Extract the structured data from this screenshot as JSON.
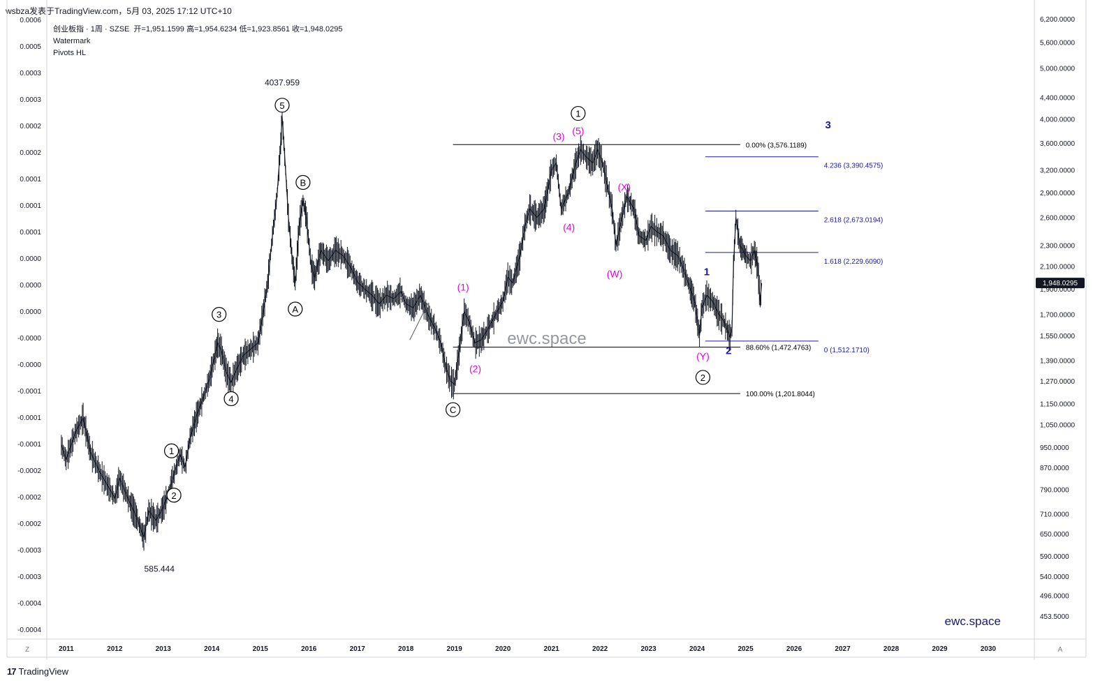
{
  "header": {
    "title": "wsbza发表于TradingView.com，5月 03, 2025 17:12 UTC+10"
  },
  "legend": {
    "symbol": "创业板指 · 1周 · SZSE",
    "ohlc": "开=1,951.1599  高=1,954.6234  低=1,923.8561  收=1,948.0295",
    "indicators": [
      "Watermark",
      "Pivots HL"
    ]
  },
  "footer": {
    "brand": "TradingView",
    "left_button": "Z",
    "right_button": "A"
  },
  "colors": {
    "price": "#131722",
    "wave_black": "#000000",
    "wave_magenta": "#e600e6",
    "wave_blue": "#1a1aa8",
    "fib_blue": "#1a1aa8",
    "last_price_bg": "#131722",
    "watermark": "#9598a1"
  },
  "chart_data": {
    "type": "line",
    "title": "创业板指 · 1周 · SZSE",
    "log_scale": true,
    "xlim": [
      2010.6,
      2030.95
    ],
    "ylim": [
      410,
      6300
    ],
    "x_ticks": [
      "2011",
      "2012",
      "2013",
      "2014",
      "2015",
      "2016",
      "2017",
      "2018",
      "2019",
      "2020",
      "2021",
      "2022",
      "2023",
      "2024",
      "2025",
      "2026",
      "2027",
      "2028",
      "2029",
      "2030"
    ],
    "y_ticks_right": [
      "6,200.0000",
      "5,600.0000",
      "5,000.0000",
      "4,400.0000",
      "4,000.0000",
      "3,600.0000",
      "3,200.0000",
      "2,900.0000",
      "2,600.0000",
      "2,300.0000",
      "2,100.0000",
      "1,900.0000",
      "1,700.0000",
      "1,550.0000",
      "1,390.0000",
      "1,270.0000",
      "1,150.0000",
      "1,050.0000",
      "950.0000",
      "870.0000",
      "790.0000",
      "710.0000",
      "650.0000",
      "590.0000",
      "540.0000",
      "496.0000",
      "453.5000"
    ],
    "y_ticks_left": [
      "0.0006",
      "0.0005",
      "0.0003",
      "0.0003",
      "0.0002",
      "0.0002",
      "0.0001",
      "0.0001",
      "0.0001",
      "0.0000",
      "0.0000",
      "0.0000",
      "-0.0000",
      "-0.0000",
      "-0.0001",
      "-0.0001",
      "-0.0001",
      "-0.0002",
      "-0.0002",
      "-0.0002",
      "-0.0003",
      "-0.0003",
      "-0.0004",
      "-0.0004"
    ],
    "last_price": "1,948.0295",
    "series": [
      {
        "values": [
          [
            2010.9,
            960
          ],
          [
            2011.0,
            900
          ],
          [
            2011.2,
            1020
          ],
          [
            2011.35,
            1080
          ],
          [
            2011.5,
            930
          ],
          [
            2011.7,
            850
          ],
          [
            2011.9,
            790
          ],
          [
            2012.0,
            760
          ],
          [
            2012.1,
            830
          ],
          [
            2012.3,
            750
          ],
          [
            2012.45,
            700
          ],
          [
            2012.6,
            640
          ],
          [
            2012.7,
            720
          ],
          [
            2012.85,
            690
          ],
          [
            2013.0,
            730
          ],
          [
            2013.15,
            800
          ],
          [
            2013.25,
            860
          ],
          [
            2013.35,
            920
          ],
          [
            2013.45,
            870
          ],
          [
            2013.55,
            990
          ],
          [
            2013.7,
            1100
          ],
          [
            2013.85,
            1200
          ],
          [
            2013.95,
            1280
          ],
          [
            2014.05,
            1400
          ],
          [
            2014.12,
            1500
          ],
          [
            2014.2,
            1450
          ],
          [
            2014.3,
            1320
          ],
          [
            2014.4,
            1260
          ],
          [
            2014.5,
            1330
          ],
          [
            2014.65,
            1420
          ],
          [
            2014.8,
            1460
          ],
          [
            2014.95,
            1500
          ],
          [
            2015.05,
            1700
          ],
          [
            2015.15,
            1950
          ],
          [
            2015.25,
            2400
          ],
          [
            2015.35,
            2900
          ],
          [
            2015.42,
            3600
          ],
          [
            2015.45,
            4037.959
          ],
          [
            2015.52,
            3200
          ],
          [
            2015.58,
            2600
          ],
          [
            2015.65,
            2200
          ],
          [
            2015.72,
            1950
          ],
          [
            2015.8,
            2500
          ],
          [
            2015.88,
            2800
          ],
          [
            2015.95,
            2600
          ],
          [
            2016.05,
            2100
          ],
          [
            2016.12,
            2000
          ],
          [
            2016.25,
            2250
          ],
          [
            2016.4,
            2150
          ],
          [
            2016.55,
            2250
          ],
          [
            2016.7,
            2200
          ],
          [
            2016.85,
            2100
          ],
          [
            2017.0,
            1960
          ],
          [
            2017.15,
            1900
          ],
          [
            2017.3,
            1850
          ],
          [
            2017.45,
            1780
          ],
          [
            2017.6,
            1850
          ],
          [
            2017.75,
            1820
          ],
          [
            2017.9,
            1880
          ],
          [
            2018.0,
            1780
          ],
          [
            2018.15,
            1750
          ],
          [
            2018.3,
            1850
          ],
          [
            2018.45,
            1700
          ],
          [
            2018.6,
            1600
          ],
          [
            2018.72,
            1500
          ],
          [
            2018.82,
            1350
          ],
          [
            2018.92,
            1270
          ],
          [
            2019.0,
            1250
          ],
          [
            2019.1,
            1450
          ],
          [
            2019.2,
            1720
          ],
          [
            2019.3,
            1650
          ],
          [
            2019.42,
            1500
          ],
          [
            2019.55,
            1520
          ],
          [
            2019.7,
            1600
          ],
          [
            2019.85,
            1700
          ],
          [
            2020.0,
            1800
          ],
          [
            2020.1,
            2000
          ],
          [
            2020.2,
            1950
          ],
          [
            2020.35,
            2200
          ],
          [
            2020.45,
            2500
          ],
          [
            2020.55,
            2700
          ],
          [
            2020.7,
            2600
          ],
          [
            2020.85,
            2700
          ],
          [
            2021.0,
            3200
          ],
          [
            2021.1,
            3300
          ],
          [
            2021.2,
            2700
          ],
          [
            2021.35,
            2900
          ],
          [
            2021.5,
            3300
          ],
          [
            2021.6,
            3500
          ],
          [
            2021.7,
            3400
          ],
          [
            2021.85,
            3300
          ],
          [
            2021.95,
            3500
          ],
          [
            2022.05,
            3300
          ],
          [
            2022.15,
            3000
          ],
          [
            2022.25,
            2700
          ],
          [
            2022.33,
            2300
          ],
          [
            2022.45,
            2600
          ],
          [
            2022.55,
            2850
          ],
          [
            2022.7,
            2700
          ],
          [
            2022.8,
            2400
          ],
          [
            2022.95,
            2350
          ],
          [
            2023.05,
            2500
          ],
          [
            2023.15,
            2450
          ],
          [
            2023.3,
            2400
          ],
          [
            2023.45,
            2250
          ],
          [
            2023.6,
            2200
          ],
          [
            2023.7,
            2100
          ],
          [
            2023.82,
            1950
          ],
          [
            2023.95,
            1800
          ],
          [
            2024.05,
            1550
          ],
          [
            2024.1,
            1750
          ],
          [
            2024.2,
            1850
          ],
          [
            2024.32,
            1800
          ],
          [
            2024.45,
            1700
          ],
          [
            2024.55,
            1650
          ],
          [
            2024.68,
            1540
          ],
          [
            2024.72,
            1600
          ],
          [
            2024.75,
            2100
          ],
          [
            2024.8,
            2600
          ],
          [
            2024.88,
            2300
          ],
          [
            2024.95,
            2250
          ],
          [
            2025.0,
            2200
          ],
          [
            2025.1,
            2150
          ],
          [
            2025.18,
            2250
          ],
          [
            2025.25,
            2100
          ],
          [
            2025.3,
            1800
          ],
          [
            2025.33,
            1948.0295
          ]
        ]
      }
    ],
    "price_labels": [
      {
        "x": 2015.45,
        "y": 4037.959,
        "text": "4037.959"
      },
      {
        "x": 2012.92,
        "y": 585.444,
        "text": "585.444"
      }
    ],
    "wave_labels": [
      {
        "x": 2013.17,
        "y": 935,
        "text": "1",
        "style": "circle"
      },
      {
        "x": 2013.22,
        "y": 770,
        "text": "2",
        "style": "circle"
      },
      {
        "x": 2014.15,
        "y": 1700,
        "text": "3",
        "style": "circle"
      },
      {
        "x": 2014.4,
        "y": 1175,
        "text": "4",
        "style": "circle"
      },
      {
        "x": 2015.45,
        "y": 4250,
        "text": "5",
        "style": "circle"
      },
      {
        "x": 2015.72,
        "y": 1740,
        "text": "A",
        "style": "circle"
      },
      {
        "x": 2015.88,
        "y": 3030,
        "text": "B",
        "style": "circle"
      },
      {
        "x": 2018.97,
        "y": 1120,
        "text": "C",
        "style": "circle"
      },
      {
        "x": 2021.55,
        "y": 4100,
        "text": "1",
        "style": "circle"
      },
      {
        "x": 2024.12,
        "y": 1290,
        "text": "2",
        "style": "circle"
      },
      {
        "x": 2019.18,
        "y": 1915,
        "text": "(1)",
        "style": "magenta"
      },
      {
        "x": 2019.43,
        "y": 1340,
        "text": "(2)",
        "style": "magenta"
      },
      {
        "x": 2021.15,
        "y": 3710,
        "text": "(3)",
        "style": "magenta"
      },
      {
        "x": 2021.36,
        "y": 2490,
        "text": "(4)",
        "style": "magenta"
      },
      {
        "x": 2021.55,
        "y": 3800,
        "text": "(5)",
        "style": "magenta"
      },
      {
        "x": 2022.5,
        "y": 2970,
        "text": "(X)",
        "style": "magenta"
      },
      {
        "x": 2022.3,
        "y": 2030,
        "text": "(W)",
        "style": "magenta"
      },
      {
        "x": 2024.12,
        "y": 1415,
        "text": "(Y)",
        "style": "magenta"
      },
      {
        "x": 2024.2,
        "y": 2050,
        "text": "1",
        "style": "blue"
      },
      {
        "x": 2024.65,
        "y": 1450,
        "text": "2",
        "style": "blue"
      },
      {
        "x": 2026.7,
        "y": 3900,
        "text": "3",
        "style": "blue"
      }
    ],
    "fib_levels": [
      {
        "x1": 2018.97,
        "x2": 2024.89,
        "y": 3576.1189,
        "label": "0.00% (3,576.1189)",
        "color": "black"
      },
      {
        "x1": 2018.97,
        "x2": 2024.89,
        "y": 1472.4763,
        "label": "88.60% (1,472.4763)",
        "color": "black"
      },
      {
        "x1": 2018.97,
        "x2": 2024.89,
        "y": 1201.8044,
        "label": "100.00% (1,201.8044)",
        "color": "black"
      },
      {
        "x1": 2024.17,
        "x2": 2026.5,
        "y": 3390.4575,
        "label": "4.236 (3,390.4575)",
        "color": "blue"
      },
      {
        "x1": 2024.17,
        "x2": 2026.5,
        "y": 2673.0194,
        "label": "2.618 (2,673.0194)",
        "color": "blue"
      },
      {
        "x1": 2024.17,
        "x2": 2026.5,
        "y": 2229.609,
        "label": "1.618 (2,229.6090)",
        "color": "blue"
      },
      {
        "x1": 2024.17,
        "x2": 2026.5,
        "y": 1512.171,
        "label": "0 (1,512.1710)",
        "color": "blue"
      }
    ],
    "watermark_center": "ewc.space",
    "watermark_corner": "ewc.space"
  }
}
